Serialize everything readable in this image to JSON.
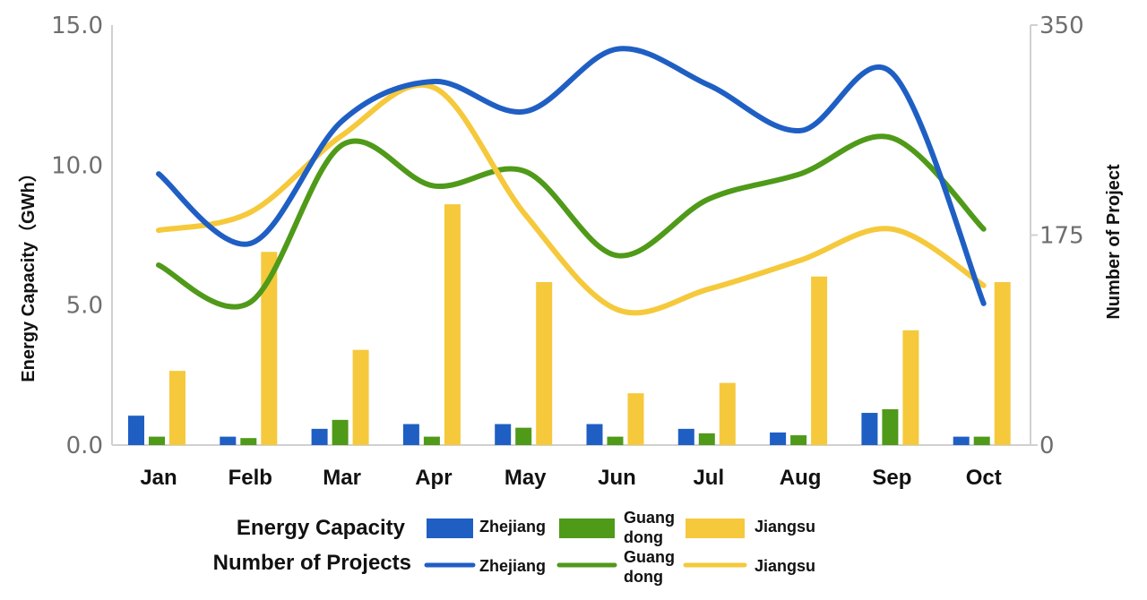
{
  "chart_data": {
    "type": "bar+line",
    "categories": [
      "Jan",
      "Felb",
      "Mar",
      "Apr",
      "May",
      "Jun",
      "Jul",
      "Aug",
      "Sep",
      "Oct"
    ],
    "y_left": {
      "label": "Energy Capacity（GWh）",
      "ylim": [
        0,
        15
      ],
      "ticks": [
        "0.0",
        "5.0",
        "10.0",
        "15.0"
      ],
      "tick_values": [
        0,
        5,
        10,
        15
      ]
    },
    "y_right": {
      "label": "Number of Project",
      "ylim": [
        0,
        350
      ],
      "ticks": [
        "0",
        "175",
        "350"
      ],
      "tick_values": [
        0,
        175,
        350
      ]
    },
    "bar_series": [
      {
        "name": "Zhejiang",
        "color": "#1f5fc4",
        "values": [
          1.05,
          0.3,
          0.58,
          0.75,
          0.75,
          0.75,
          0.58,
          0.45,
          1.15,
          0.3
        ]
      },
      {
        "name": "Guang dong",
        "color": "#4f9a19",
        "values": [
          0.3,
          0.25,
          0.9,
          0.3,
          0.62,
          0.3,
          0.42,
          0.35,
          1.28,
          0.3
        ]
      },
      {
        "name": "Jiangsu",
        "color": "#f5c93b",
        "values": [
          2.65,
          6.9,
          3.4,
          8.6,
          5.82,
          1.85,
          2.22,
          6.02,
          4.1,
          5.82
        ]
      }
    ],
    "line_series": [
      {
        "name": "Zhejiang",
        "color": "#1f5fc4",
        "values": [
          226,
          168,
          270,
          303,
          278,
          330,
          300,
          262,
          310,
          118
        ]
      },
      {
        "name": "Guang dong",
        "color": "#4f9a19",
        "values": [
          150,
          119,
          250,
          216,
          228,
          158,
          205,
          226,
          256,
          180
        ]
      },
      {
        "name": "Jiangsu",
        "color": "#f5c93b",
        "values": [
          179,
          194,
          258,
          298,
          192,
          113,
          130,
          154,
          180,
          133
        ]
      }
    ],
    "legend": {
      "placement": "bottom",
      "bar_group_title": "Energy Capacity",
      "line_group_title": "Number of Projects"
    },
    "grid": false
  }
}
